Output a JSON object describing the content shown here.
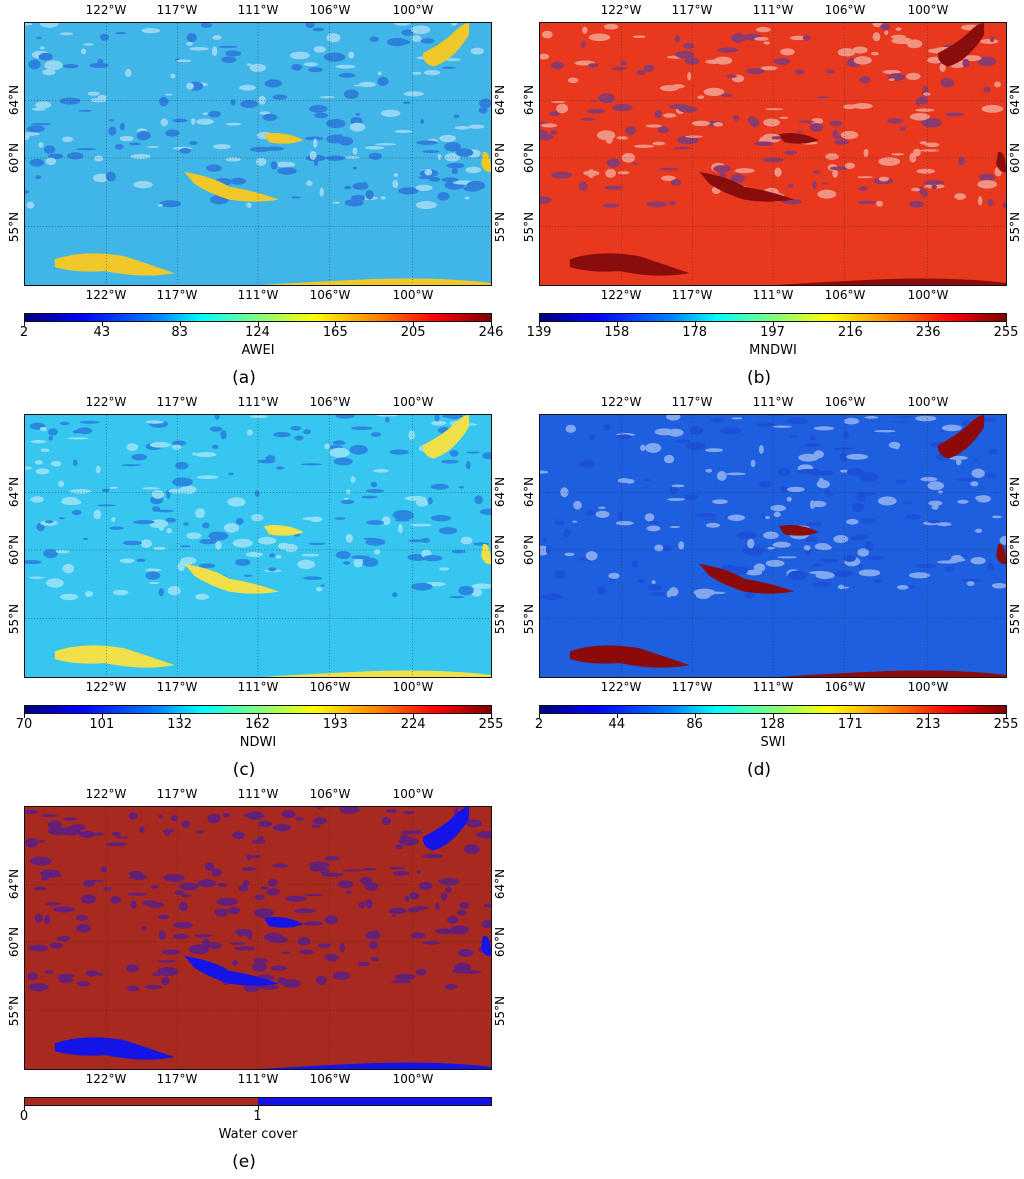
{
  "longitudes": [
    "122°W",
    "117°W",
    "111°W",
    "106°W",
    "100°W"
  ],
  "latitudes": [
    "64°N",
    "60°N",
    "55°N"
  ],
  "panels": [
    {
      "label": "(a)",
      "title": "AWEI",
      "ticks": [
        "2",
        "43",
        "83",
        "124",
        "165",
        "205",
        "246"
      ],
      "colormap": "jet",
      "base_color": "#3fb5e8",
      "water_color": "#f0c82a"
    },
    {
      "label": "(b)",
      "title": "MNDWI",
      "ticks": [
        "139",
        "158",
        "178",
        "197",
        "216",
        "236",
        "255"
      ],
      "colormap": "jet",
      "base_color": "#e8381e",
      "water_color": "#8a0d0d"
    },
    {
      "label": "(c)",
      "title": "NDWI",
      "ticks": [
        "70",
        "101",
        "132",
        "162",
        "193",
        "224",
        "255"
      ],
      "colormap": "jet",
      "base_color": "#36c6ef",
      "water_color": "#f0e04a"
    },
    {
      "label": "(d)",
      "title": "SWI",
      "ticks": [
        "2",
        "44",
        "86",
        "128",
        "171",
        "213",
        "255"
      ],
      "colormap": "jet",
      "base_color": "#1e5fe0",
      "water_color": "#8c0a0a"
    },
    {
      "label": "(e)",
      "title": "Water cover",
      "ticks": [
        "0",
        "1"
      ],
      "colormap": "binary",
      "base_color": "#a8291f",
      "water_color": "#1414e6"
    }
  ]
}
